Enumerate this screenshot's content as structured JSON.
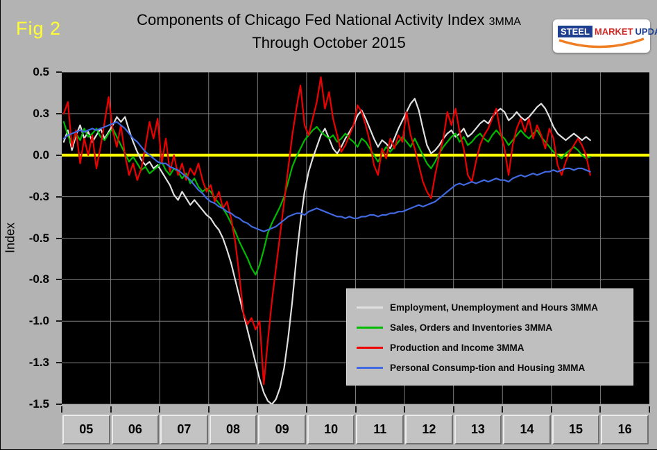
{
  "page": {
    "fig_label": "Fig 2",
    "title_line1": "Components of Chicago Fed National Activity Index",
    "title_suffix": "3MMA",
    "title_line2": "Through October 2015",
    "logo": {
      "steel": "STEEL",
      "market": "MARKET",
      "update": "UPDATE"
    }
  },
  "chart_data": {
    "type": "line",
    "title": "Components of Chicago Fed National Activity Index 3MMA Through October 2015",
    "ylabel": "Index",
    "xlabel": "",
    "ylim": [
      -1.5,
      0.5
    ],
    "xlim": [
      2005,
      2017
    ],
    "grid": true,
    "legend_position": "inside-bottom-right",
    "plot_bg": "#000000",
    "grid_color": "#7d7d7d",
    "zero_line_color": "#ffff00",
    "ytick_values": [
      0.5,
      0.25,
      0,
      -0.25,
      -0.5,
      -0.75,
      -1,
      -1.25,
      -1.5
    ],
    "ytick_labels": [
      "0.5",
      "0.3",
      "0.0",
      "-0.3",
      "-0.5",
      "-0.8",
      "-1.0",
      "-1.3",
      "-1.5"
    ],
    "x_categories": [
      "05",
      "06",
      "07",
      "08",
      "09",
      "10",
      "11",
      "12",
      "13",
      "14",
      "15",
      "16"
    ],
    "x_start_year": 2005,
    "points_per_year": 12,
    "x_coverage": "monthly, Jan 2005 through Oct 2015",
    "series": [
      {
        "name": "Employment, Unemployment and Hours 3MMA",
        "color": "#e0e0e0",
        "values": [
          0.08,
          0.15,
          0.03,
          0.12,
          0.18,
          0.1,
          0.14,
          0.08,
          0.12,
          0.16,
          0.1,
          0.14,
          0.18,
          0.23,
          0.2,
          0.23,
          0.15,
          0.08,
          0.02,
          -0.03,
          -0.06,
          -0.04,
          -0.08,
          -0.06,
          -0.1,
          -0.14,
          -0.18,
          -0.24,
          -0.27,
          -0.22,
          -0.26,
          -0.3,
          -0.27,
          -0.3,
          -0.33,
          -0.36,
          -0.38,
          -0.42,
          -0.45,
          -0.5,
          -0.57,
          -0.65,
          -0.75,
          -0.85,
          -0.95,
          -1.05,
          -1.15,
          -1.25,
          -1.35,
          -1.43,
          -1.48,
          -1.5,
          -1.47,
          -1.4,
          -1.28,
          -1.1,
          -0.88,
          -0.62,
          -0.4,
          -0.22,
          -0.1,
          -0.02,
          0.05,
          0.12,
          0.16,
          0.1,
          0.04,
          0.01,
          0.05,
          0.1,
          0.14,
          0.18,
          0.24,
          0.27,
          0.22,
          0.16,
          0.1,
          0.05,
          0.09,
          0.07,
          0.04,
          0.1,
          0.16,
          0.21,
          0.26,
          0.31,
          0.34,
          0.27,
          0.16,
          0.06,
          0.01,
          0.03,
          0.06,
          0.1,
          0.13,
          0.15,
          0.11,
          0.13,
          0.16,
          0.11,
          0.13,
          0.16,
          0.19,
          0.21,
          0.19,
          0.23,
          0.26,
          0.28,
          0.26,
          0.21,
          0.23,
          0.26,
          0.23,
          0.21,
          0.23,
          0.26,
          0.29,
          0.31,
          0.28,
          0.23,
          0.17,
          0.13,
          0.11,
          0.09,
          0.11,
          0.13,
          0.11,
          0.09,
          0.11,
          0.09
        ]
      },
      {
        "name": "Sales, Orders and Inventories 3MMA",
        "color": "#00bb00",
        "values": [
          0.2,
          0.12,
          0.06,
          0.13,
          0.09,
          0.16,
          0.11,
          0.13,
          0.16,
          0.11,
          0.09,
          0.13,
          0.16,
          0.11,
          0.06,
          0.01,
          -0.04,
          -0.01,
          -0.05,
          -0.09,
          -0.07,
          -0.11,
          -0.09,
          -0.07,
          -0.04,
          -0.09,
          -0.12,
          -0.08,
          -0.1,
          -0.14,
          -0.11,
          -0.17,
          -0.14,
          -0.19,
          -0.22,
          -0.2,
          -0.22,
          -0.26,
          -0.29,
          -0.32,
          -0.36,
          -0.41,
          -0.46,
          -0.52,
          -0.57,
          -0.62,
          -0.68,
          -0.72,
          -0.66,
          -0.57,
          -0.47,
          -0.41,
          -0.36,
          -0.31,
          -0.25,
          -0.16,
          -0.07,
          -0.01,
          0.04,
          0.09,
          0.12,
          0.15,
          0.17,
          0.14,
          0.12,
          0.1,
          0.12,
          0.08,
          0.1,
          0.13,
          0.1,
          0.08,
          0.05,
          0.1,
          0.08,
          0.04,
          0.0,
          -0.04,
          0.01,
          0.05,
          0.02,
          0.05,
          0.08,
          0.11,
          0.08,
          0.05,
          0.1,
          0.05,
          0.0,
          -0.05,
          -0.08,
          -0.04,
          0.01,
          0.05,
          0.08,
          0.11,
          0.13,
          0.08,
          0.11,
          0.06,
          0.08,
          0.11,
          0.13,
          0.1,
          0.08,
          0.12,
          0.15,
          0.12,
          0.1,
          0.06,
          0.09,
          0.12,
          0.15,
          0.12,
          0.1,
          0.13,
          0.15,
          0.11,
          0.08,
          0.05,
          0.02,
          0.0,
          -0.02,
          0.01,
          0.03,
          0.05,
          0.03,
          0.0,
          -0.02,
          -0.01
        ]
      },
      {
        "name": "Production and Income 3MMA",
        "color": "#ee0000",
        "values": [
          0.25,
          0.32,
          0.05,
          0.15,
          -0.05,
          0.1,
          0.0,
          0.12,
          -0.08,
          0.05,
          0.2,
          0.35,
          0.15,
          0.05,
          0.18,
          0.0,
          -0.12,
          -0.05,
          -0.15,
          -0.08,
          0.05,
          0.2,
          0.1,
          0.22,
          -0.05,
          0.1,
          -0.1,
          0.0,
          -0.12,
          -0.05,
          -0.15,
          -0.08,
          -0.12,
          -0.05,
          -0.15,
          -0.22,
          -0.18,
          -0.28,
          -0.22,
          -0.32,
          -0.28,
          -0.38,
          -0.52,
          -0.72,
          -0.95,
          -1.02,
          -0.98,
          -1.05,
          -1.0,
          -1.38,
          -1.12,
          -0.88,
          -0.68,
          -0.48,
          -0.28,
          -0.08,
          0.12,
          0.28,
          0.42,
          0.18,
          0.12,
          0.22,
          0.32,
          0.47,
          0.28,
          0.38,
          0.22,
          0.12,
          0.02,
          0.06,
          0.12,
          0.18,
          0.3,
          0.26,
          0.18,
          0.08,
          -0.06,
          -0.12,
          0.04,
          -0.02,
          0.1,
          0.04,
          0.12,
          0.08,
          0.26,
          0.12,
          0.04,
          -0.06,
          -0.16,
          -0.22,
          -0.26,
          -0.12,
          0.0,
          0.1,
          0.26,
          0.18,
          0.28,
          0.14,
          0.04,
          -0.12,
          -0.16,
          -0.04,
          0.06,
          0.12,
          0.16,
          0.22,
          0.28,
          0.14,
          0.04,
          -0.12,
          0.06,
          0.16,
          0.22,
          0.14,
          0.22,
          0.1,
          0.18,
          0.12,
          0.04,
          0.16,
          0.1,
          -0.06,
          -0.12,
          -0.04,
          0.02,
          0.06,
          0.1,
          0.06,
          0.0,
          -0.12
        ]
      },
      {
        "name": "Personal Consump-tion and Housing 3MMA",
        "color": "#4169e1",
        "values": [
          0.1,
          0.12,
          0.13,
          0.14,
          0.15,
          0.14,
          0.15,
          0.16,
          0.15,
          0.16,
          0.17,
          0.18,
          0.19,
          0.2,
          0.18,
          0.16,
          0.13,
          0.1,
          0.08,
          0.05,
          0.02,
          0.0,
          -0.02,
          -0.04,
          -0.05,
          -0.05,
          -0.07,
          -0.08,
          -0.09,
          -0.11,
          -0.13,
          -0.15,
          -0.18,
          -0.21,
          -0.23,
          -0.26,
          -0.28,
          -0.29,
          -0.31,
          -0.32,
          -0.34,
          -0.35,
          -0.37,
          -0.38,
          -0.4,
          -0.41,
          -0.43,
          -0.44,
          -0.45,
          -0.46,
          -0.45,
          -0.44,
          -0.43,
          -0.41,
          -0.39,
          -0.37,
          -0.36,
          -0.35,
          -0.35,
          -0.36,
          -0.34,
          -0.33,
          -0.32,
          -0.33,
          -0.34,
          -0.35,
          -0.36,
          -0.37,
          -0.37,
          -0.38,
          -0.37,
          -0.38,
          -0.38,
          -0.37,
          -0.37,
          -0.36,
          -0.36,
          -0.37,
          -0.36,
          -0.36,
          -0.35,
          -0.35,
          -0.34,
          -0.34,
          -0.33,
          -0.32,
          -0.31,
          -0.3,
          -0.31,
          -0.3,
          -0.29,
          -0.28,
          -0.26,
          -0.24,
          -0.22,
          -0.2,
          -0.18,
          -0.17,
          -0.18,
          -0.17,
          -0.16,
          -0.17,
          -0.16,
          -0.15,
          -0.16,
          -0.15,
          -0.14,
          -0.15,
          -0.15,
          -0.16,
          -0.14,
          -0.13,
          -0.12,
          -0.13,
          -0.12,
          -0.11,
          -0.12,
          -0.11,
          -0.1,
          -0.1,
          -0.09,
          -0.1,
          -0.09,
          -0.08,
          -0.08,
          -0.09,
          -0.08,
          -0.08,
          -0.09,
          -0.1
        ]
      }
    ]
  }
}
